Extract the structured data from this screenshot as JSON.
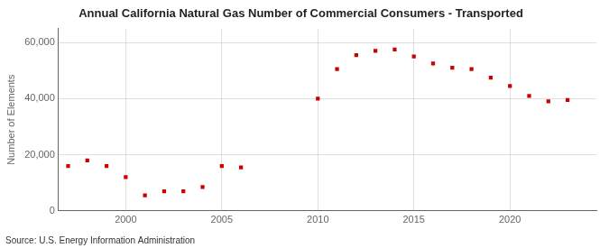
{
  "chart_data": {
    "type": "scatter",
    "title": "Annual California Natural Gas Number of Commercial Consumers - Transported",
    "y_label": "Number of Elements",
    "annotations": [
      "Source: U.S. Energy Information Administration"
    ],
    "x": [
      1997,
      1998,
      1999,
      2000,
      2001,
      2002,
      2003,
      2004,
      2005,
      2006,
      2010,
      2011,
      2012,
      2013,
      2014,
      2015,
      2016,
      2017,
      2018,
      2019,
      2020,
      2021,
      2022,
      2023
    ],
    "values": [
      16000,
      18000,
      16000,
      12000,
      5500,
      7000,
      7000,
      8500,
      16000,
      15500,
      40000,
      50500,
      55500,
      57000,
      57500,
      55000,
      52500,
      51000,
      50500,
      47500,
      44500,
      41000,
      39000,
      39500
    ],
    "color": "#cc0000",
    "marker": "square",
    "xlim": [
      1996.5,
      2024.5
    ],
    "xticks": [
      2000,
      2005,
      2010,
      2015,
      2020
    ],
    "ylim": [
      0,
      65000
    ],
    "yticks": [
      0,
      {
        "value": 20000,
        "label": "20,000"
      },
      {
        "value": 40000,
        "label": "40,000"
      },
      {
        "value": 60000,
        "label": "60,000"
      }
    ],
    "grid": true
  }
}
